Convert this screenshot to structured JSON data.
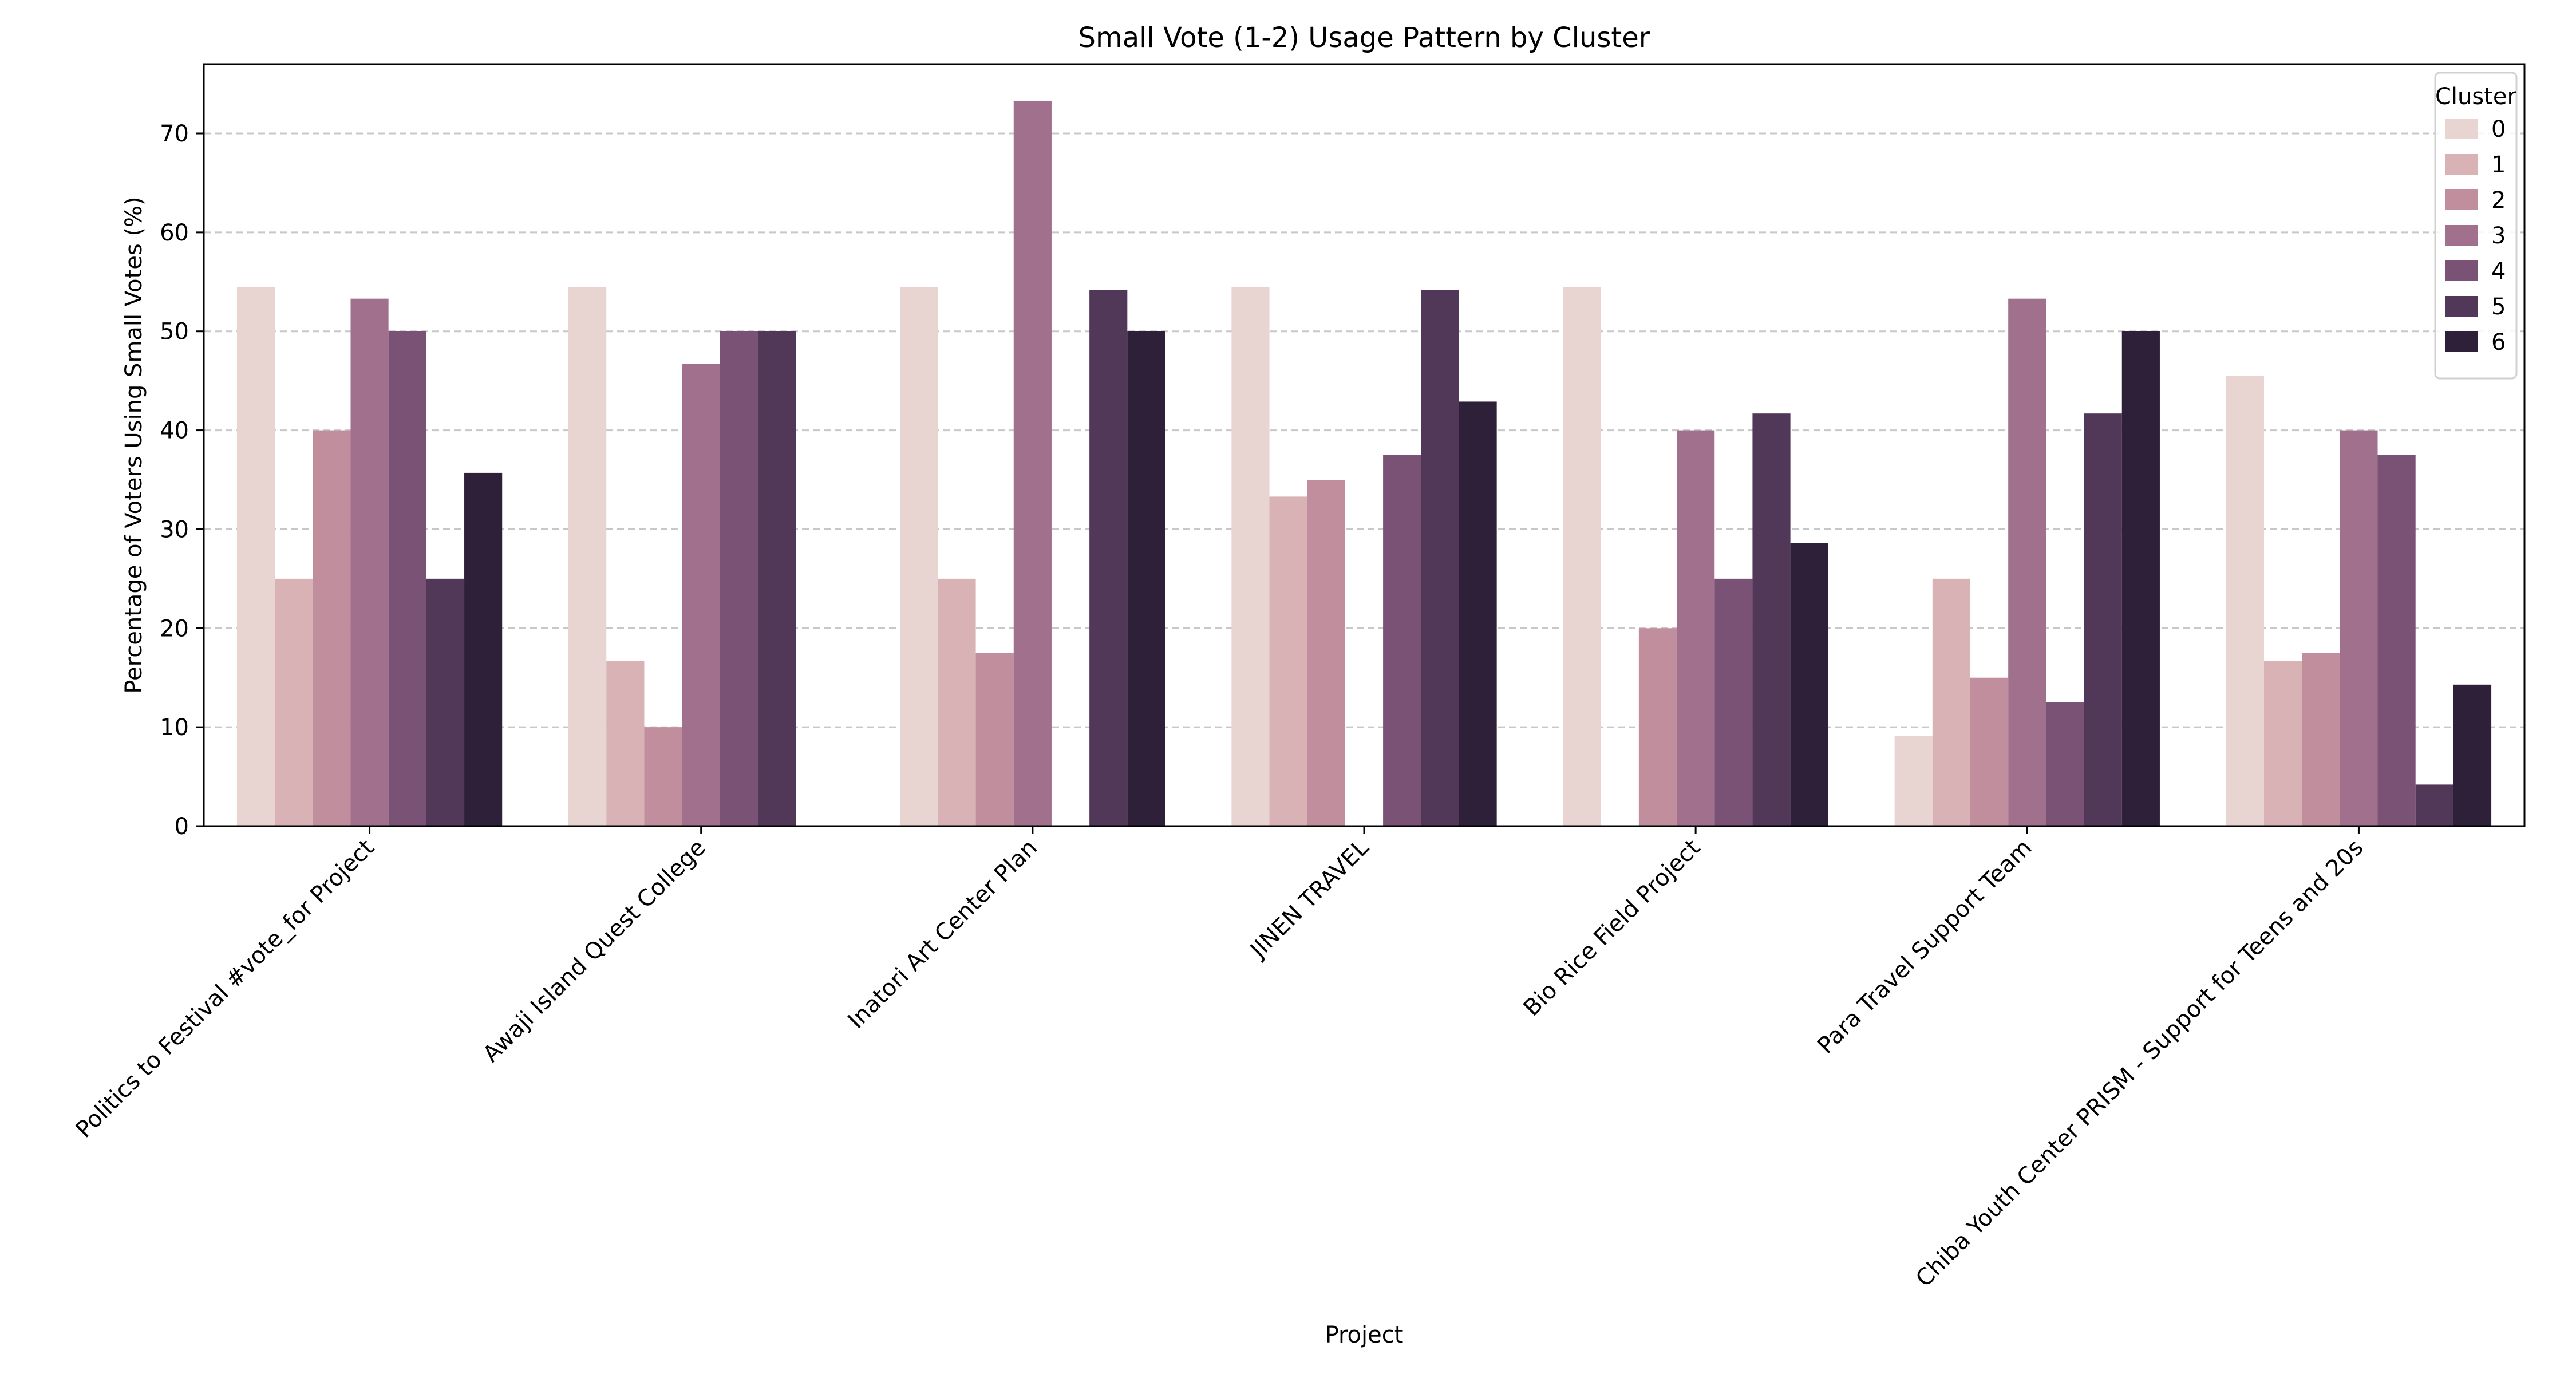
{
  "chart_data": {
    "type": "bar",
    "title": "Small Vote (1-2) Usage Pattern by Cluster",
    "xlabel": "Project",
    "ylabel": "Percentage of Voters Using Small Votes (%)",
    "ylim": [
      0,
      77
    ],
    "yticks": [
      0,
      10,
      20,
      30,
      40,
      50,
      60,
      70
    ],
    "grid": "horizontal dashed",
    "legend_title": "Cluster",
    "legend_position": "top-right",
    "categories": [
      "Politics to Festival #vote_for Project",
      "Awaji Island Quest College",
      "Inatori Art Center Plan",
      "JINEN TRAVEL",
      "Bio Rice Field Project",
      "Para Travel Support Team",
      "Chiba Youth Center PRISM - Support for Teens and 20s"
    ],
    "series": [
      {
        "name": "0",
        "color": "#e8d4d0",
        "values": [
          54.5,
          54.5,
          54.5,
          54.5,
          54.5,
          9.1,
          45.5
        ]
      },
      {
        "name": "1",
        "color": "#d8b2b5",
        "values": [
          25.0,
          16.7,
          25.0,
          33.3,
          null,
          25.0,
          16.7
        ]
      },
      {
        "name": "2",
        "color": "#c08e9c",
        "values": [
          40.0,
          10.0,
          17.5,
          35.0,
          20.0,
          15.0,
          17.5
        ]
      },
      {
        "name": "3",
        "color": "#a0708d",
        "values": [
          53.3,
          46.7,
          73.3,
          null,
          40.0,
          53.3,
          40.0
        ]
      },
      {
        "name": "4",
        "color": "#7a5275",
        "values": [
          50.0,
          50.0,
          null,
          37.5,
          25.0,
          12.5,
          37.5
        ]
      },
      {
        "name": "5",
        "color": "#513758",
        "values": [
          25.0,
          50.0,
          54.2,
          54.2,
          41.7,
          41.7,
          4.2
        ]
      },
      {
        "name": "6",
        "color": "#2d2038",
        "values": [
          35.7,
          null,
          50.0,
          42.9,
          28.6,
          50.0,
          14.3
        ]
      }
    ]
  }
}
